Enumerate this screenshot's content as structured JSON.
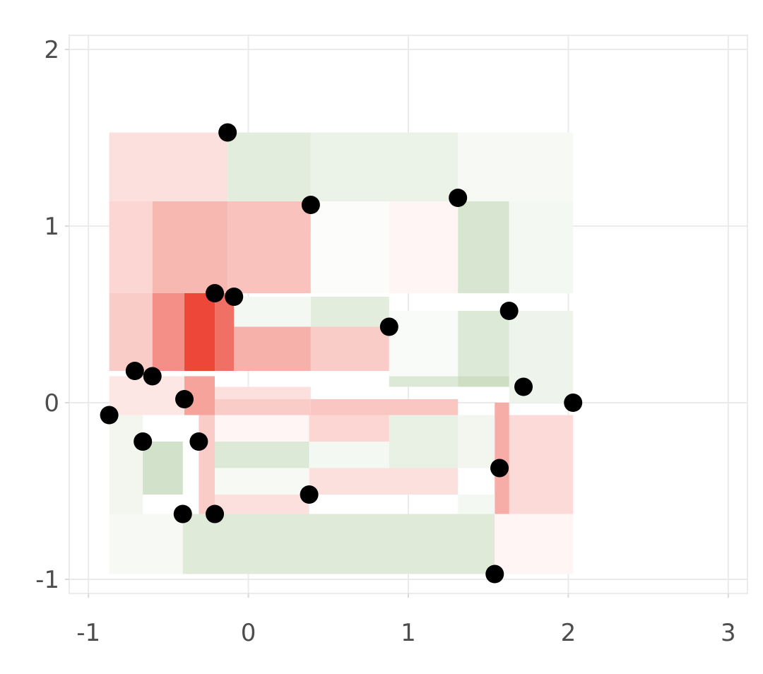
{
  "chart_data": {
    "type": "heatmap",
    "title": "",
    "xlabel": "",
    "ylabel": "",
    "xlim": [
      -1.12,
      3.12
    ],
    "ylim": [
      -1.08,
      2.08
    ],
    "grid": true,
    "x_ticks": [
      -1,
      0,
      1,
      2,
      3
    ],
    "y_ticks": [
      -1,
      0,
      1,
      2
    ],
    "x_tick_labels": [
      "-1",
      "0",
      "1",
      "2",
      "3"
    ],
    "y_tick_labels": [
      "-1",
      "0",
      "1",
      "2"
    ],
    "colors": {
      "positive": "#ea3323",
      "negative": "#8fb579",
      "neutral": "#ffffff",
      "points": "#000000",
      "grid": "#ebebeb",
      "tick_text": "#4d4d4d"
    },
    "points": [
      {
        "x": -0.87,
        "y": -0.07
      },
      {
        "x": -0.71,
        "y": 0.18
      },
      {
        "x": -0.6,
        "y": 0.15
      },
      {
        "x": -0.66,
        "y": -0.22
      },
      {
        "x": -0.4,
        "y": 0.02
      },
      {
        "x": -0.31,
        "y": -0.22
      },
      {
        "x": -0.41,
        "y": -0.63
      },
      {
        "x": -0.21,
        "y": -0.63
      },
      {
        "x": -0.21,
        "y": 0.62
      },
      {
        "x": -0.09,
        "y": 0.6
      },
      {
        "x": -0.13,
        "y": 1.53
      },
      {
        "x": 0.39,
        "y": 1.12
      },
      {
        "x": 0.38,
        "y": -0.52
      },
      {
        "x": 0.88,
        "y": 0.43
      },
      {
        "x": 1.31,
        "y": 1.16
      },
      {
        "x": 1.63,
        "y": 0.52
      },
      {
        "x": 1.72,
        "y": 0.09
      },
      {
        "x": 2.03,
        "y": 0.0
      },
      {
        "x": 1.57,
        "y": -0.37
      },
      {
        "x": 1.54,
        "y": -0.97
      }
    ],
    "cells": [
      {
        "x0": -0.87,
        "x1": -0.13,
        "y0": 1.14,
        "y1": 1.53,
        "v": 0.15
      },
      {
        "x0": -0.13,
        "x1": 0.39,
        "y0": 1.14,
        "y1": 1.53,
        "v": -0.25
      },
      {
        "x0": 0.39,
        "x1": 1.31,
        "y0": 1.14,
        "y1": 1.53,
        "v": -0.18
      },
      {
        "x0": 1.31,
        "x1": 2.03,
        "y0": 1.14,
        "y1": 1.53,
        "v": -0.08
      },
      {
        "x0": -0.87,
        "x1": -0.6,
        "y0": 0.62,
        "y1": 1.14,
        "v": 0.2
      },
      {
        "x0": -0.6,
        "x1": -0.13,
        "y0": 0.62,
        "y1": 1.14,
        "v": 0.35
      },
      {
        "x0": -0.13,
        "x1": 0.39,
        "y0": 0.62,
        "y1": 1.14,
        "v": 0.3
      },
      {
        "x0": 0.39,
        "x1": 0.88,
        "y0": 0.62,
        "y1": 1.14,
        "v": -0.03
      },
      {
        "x0": 0.88,
        "x1": 1.31,
        "y0": 0.62,
        "y1": 1.14,
        "v": 0.05
      },
      {
        "x0": 1.31,
        "x1": 1.63,
        "y0": 0.62,
        "y1": 1.14,
        "v": -0.35
      },
      {
        "x0": 1.63,
        "x1": 2.03,
        "y0": 0.62,
        "y1": 1.14,
        "v": -0.1
      },
      {
        "x0": -0.87,
        "x1": -0.6,
        "y0": 0.18,
        "y1": 0.62,
        "v": 0.25
      },
      {
        "x0": -0.6,
        "x1": -0.4,
        "y0": 0.18,
        "y1": 0.62,
        "v": 0.55
      },
      {
        "x0": -0.4,
        "x1": -0.21,
        "y0": 0.18,
        "y1": 0.62,
        "v": 0.9
      },
      {
        "x0": -0.21,
        "x1": -0.09,
        "y0": 0.18,
        "y1": 0.62,
        "v": 0.7
      },
      {
        "x0": -0.09,
        "x1": 0.39,
        "y0": 0.18,
        "y1": 0.43,
        "v": 0.38
      },
      {
        "x0": 0.39,
        "x1": 0.88,
        "y0": 0.18,
        "y1": 0.43,
        "v": 0.25
      },
      {
        "x0": -0.09,
        "x1": 0.39,
        "y0": 0.43,
        "y1": 0.6,
        "v": -0.1
      },
      {
        "x0": 0.39,
        "x1": 0.88,
        "y0": 0.43,
        "y1": 0.6,
        "v": -0.25
      },
      {
        "x0": 0.88,
        "x1": 1.31,
        "y0": 0.15,
        "y1": 0.52,
        "v": -0.05
      },
      {
        "x0": 1.31,
        "x1": 1.63,
        "y0": 0.15,
        "y1": 0.52,
        "v": -0.3
      },
      {
        "x0": 1.63,
        "x1": 2.03,
        "y0": 0.0,
        "y1": 0.52,
        "v": -0.15
      },
      {
        "x0": -0.87,
        "x1": -0.4,
        "y0": -0.07,
        "y1": 0.15,
        "v": 0.12
      },
      {
        "x0": -0.4,
        "x1": -0.21,
        "y0": -0.07,
        "y1": 0.15,
        "v": 0.45
      },
      {
        "x0": -0.21,
        "x1": 0.39,
        "y0": -0.07,
        "y1": 0.02,
        "v": 0.25
      },
      {
        "x0": -0.21,
        "x1": 0.39,
        "y0": 0.02,
        "y1": 0.09,
        "v": 0.15
      },
      {
        "x0": 0.39,
        "x1": 1.31,
        "y0": -0.07,
        "y1": 0.02,
        "v": 0.28
      },
      {
        "x0": 0.88,
        "x1": 1.31,
        "y0": 0.09,
        "y1": 0.15,
        "v": -0.3
      },
      {
        "x0": 1.31,
        "x1": 1.63,
        "y0": 0.09,
        "y1": 0.15,
        "v": -0.45
      },
      {
        "x0": -0.87,
        "x1": -0.66,
        "y0": -0.63,
        "y1": -0.07,
        "v": -0.12
      },
      {
        "x0": -0.66,
        "x1": -0.41,
        "y0": -0.52,
        "y1": -0.22,
        "v": -0.4
      },
      {
        "x0": -0.31,
        "x1": -0.21,
        "y0": -0.63,
        "y1": -0.07,
        "v": 0.25
      },
      {
        "x0": -0.21,
        "x1": 0.38,
        "y0": -0.37,
        "y1": -0.22,
        "v": -0.3
      },
      {
        "x0": -0.21,
        "x1": 0.38,
        "y0": -0.22,
        "y1": -0.07,
        "v": 0.05
      },
      {
        "x0": 0.38,
        "x1": 0.88,
        "y0": -0.22,
        "y1": -0.07,
        "v": 0.2
      },
      {
        "x0": 0.38,
        "x1": 0.88,
        "y0": -0.37,
        "y1": -0.22,
        "v": -0.1
      },
      {
        "x0": 0.88,
        "x1": 1.31,
        "y0": -0.37,
        "y1": -0.07,
        "v": -0.2
      },
      {
        "x0": 1.31,
        "x1": 1.54,
        "y0": -0.37,
        "y1": -0.07,
        "v": -0.12
      },
      {
        "x0": -0.21,
        "x1": 0.38,
        "y0": -0.52,
        "y1": -0.37,
        "v": -0.08
      },
      {
        "x0": 0.38,
        "x1": 1.31,
        "y0": -0.52,
        "y1": -0.37,
        "v": 0.15
      },
      {
        "x0": 1.57,
        "x1": 2.03,
        "y0": -0.63,
        "y1": -0.07,
        "v": 0.18
      },
      {
        "x0": 1.54,
        "x1": 1.63,
        "y0": -0.63,
        "y1": 0.0,
        "v": 0.4
      },
      {
        "x0": -0.21,
        "x1": 0.38,
        "y0": -0.63,
        "y1": -0.52,
        "v": 0.15
      },
      {
        "x0": 1.31,
        "x1": 1.54,
        "y0": -0.63,
        "y1": -0.52,
        "v": -0.1
      },
      {
        "x0": -0.87,
        "x1": -0.41,
        "y0": -0.97,
        "y1": -0.63,
        "v": -0.08
      },
      {
        "x0": -0.41,
        "x1": 1.54,
        "y0": -0.97,
        "y1": -0.63,
        "v": -0.28
      },
      {
        "x0": 1.54,
        "x1": 2.03,
        "y0": -0.97,
        "y1": -0.63,
        "v": 0.05
      }
    ]
  }
}
